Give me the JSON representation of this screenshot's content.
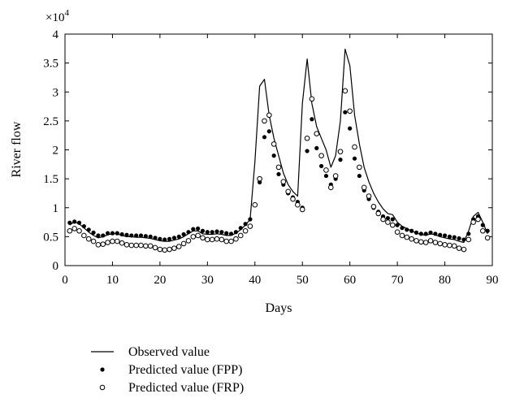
{
  "chart_data": {
    "type": "line",
    "xlabel": "Days",
    "ylabel": "River flow",
    "y_multiplier": "×10",
    "y_multiplier_exp": "4",
    "xlim": [
      0,
      90
    ],
    "ylim": [
      0,
      4
    ],
    "x_ticks": [
      0,
      10,
      20,
      30,
      40,
      50,
      60,
      70,
      80,
      90
    ],
    "y_ticks": [
      0,
      0.5,
      1,
      1.5,
      2,
      2.5,
      3,
      3.5,
      4
    ],
    "y_tick_labels": [
      "0",
      "0.5",
      "1",
      "1.5",
      "2",
      "2.5",
      "3",
      "3.5",
      "4"
    ],
    "grid": false,
    "legend_position": "bottom-left",
    "x": [
      1,
      2,
      3,
      4,
      5,
      6,
      7,
      8,
      9,
      10,
      11,
      12,
      13,
      14,
      15,
      16,
      17,
      18,
      19,
      20,
      21,
      22,
      23,
      24,
      25,
      26,
      27,
      28,
      29,
      30,
      31,
      32,
      33,
      34,
      35,
      36,
      37,
      38,
      39,
      40,
      41,
      42,
      43,
      44,
      45,
      46,
      47,
      48,
      49,
      50,
      51,
      52,
      53,
      54,
      55,
      56,
      57,
      58,
      59,
      60,
      61,
      62,
      63,
      64,
      65,
      66,
      67,
      68,
      69,
      70,
      71,
      72,
      73,
      74,
      75,
      76,
      77,
      78,
      79,
      80,
      81,
      82,
      83,
      84,
      85,
      86,
      87,
      88,
      89
    ],
    "series": [
      {
        "name": "Observed value",
        "style": "line",
        "color": "#000000",
        "values": [
          0.7,
          0.76,
          0.72,
          0.65,
          0.58,
          0.52,
          0.48,
          0.5,
          0.53,
          0.55,
          0.55,
          0.52,
          0.5,
          0.5,
          0.49,
          0.49,
          0.48,
          0.47,
          0.45,
          0.43,
          0.42,
          0.42,
          0.44,
          0.46,
          0.5,
          0.55,
          0.6,
          0.6,
          0.55,
          0.54,
          0.54,
          0.55,
          0.54,
          0.52,
          0.52,
          0.56,
          0.62,
          0.7,
          0.8,
          1.8,
          3.1,
          3.22,
          2.6,
          2.2,
          1.9,
          1.6,
          1.4,
          1.28,
          1.2,
          2.8,
          3.57,
          2.8,
          2.4,
          2.2,
          2.0,
          1.7,
          1.9,
          2.5,
          3.74,
          3.45,
          2.6,
          2.1,
          1.7,
          1.45,
          1.25,
          1.1,
          0.98,
          0.9,
          0.88,
          0.75,
          0.68,
          0.64,
          0.6,
          0.56,
          0.54,
          0.52,
          0.55,
          0.53,
          0.5,
          0.48,
          0.46,
          0.45,
          0.42,
          0.4,
          0.6,
          0.85,
          0.92,
          0.75,
          0.55
        ]
      },
      {
        "name": "Predicted value (FPP)",
        "style": "filled-dots",
        "color": "#000000",
        "values": [
          0.74,
          0.76,
          0.74,
          0.68,
          0.62,
          0.57,
          0.52,
          0.52,
          0.56,
          0.56,
          0.56,
          0.54,
          0.53,
          0.52,
          0.52,
          0.52,
          0.51,
          0.5,
          0.48,
          0.46,
          0.45,
          0.46,
          0.48,
          0.5,
          0.54,
          0.58,
          0.63,
          0.64,
          0.6,
          0.58,
          0.58,
          0.59,
          0.58,
          0.56,
          0.55,
          0.58,
          0.65,
          0.72,
          0.8,
          1.05,
          1.44,
          2.22,
          2.32,
          1.9,
          1.58,
          1.4,
          1.25,
          1.18,
          1.1,
          1.0,
          1.98,
          2.53,
          2.03,
          1.72,
          1.55,
          1.4,
          1.5,
          1.83,
          2.65,
          2.37,
          1.85,
          1.55,
          1.3,
          1.15,
          1.0,
          0.93,
          0.85,
          0.82,
          0.8,
          0.7,
          0.65,
          0.62,
          0.6,
          0.57,
          0.55,
          0.55,
          0.57,
          0.55,
          0.53,
          0.52,
          0.5,
          0.49,
          0.47,
          0.45,
          0.55,
          0.8,
          0.85,
          0.7,
          0.6
        ]
      },
      {
        "name": "Predicted value (FRP)",
        "style": "open-dots",
        "color": "#000000",
        "values": [
          0.6,
          0.64,
          0.6,
          0.52,
          0.46,
          0.42,
          0.36,
          0.37,
          0.4,
          0.42,
          0.42,
          0.39,
          0.36,
          0.35,
          0.35,
          0.35,
          0.34,
          0.34,
          0.31,
          0.28,
          0.27,
          0.28,
          0.3,
          0.33,
          0.38,
          0.43,
          0.5,
          0.52,
          0.48,
          0.45,
          0.45,
          0.46,
          0.45,
          0.42,
          0.42,
          0.46,
          0.52,
          0.6,
          0.68,
          1.05,
          1.5,
          2.5,
          2.6,
          2.1,
          1.7,
          1.45,
          1.28,
          1.15,
          1.05,
          0.97,
          2.2,
          2.88,
          2.28,
          1.9,
          1.65,
          1.35,
          1.55,
          1.97,
          3.02,
          2.67,
          2.05,
          1.7,
          1.35,
          1.2,
          1.02,
          0.9,
          0.8,
          0.75,
          0.7,
          0.58,
          0.52,
          0.49,
          0.46,
          0.43,
          0.41,
          0.4,
          0.43,
          0.4,
          0.38,
          0.36,
          0.35,
          0.34,
          0.3,
          0.28,
          0.45,
          0.75,
          0.8,
          0.6,
          0.48
        ]
      }
    ]
  }
}
